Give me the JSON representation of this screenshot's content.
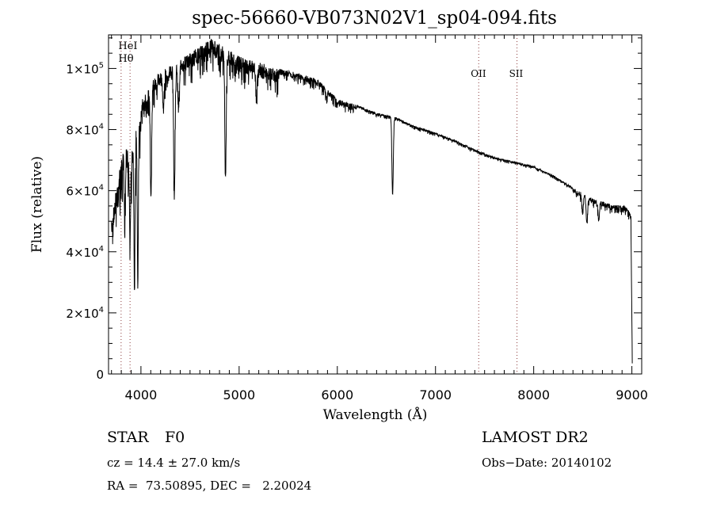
{
  "chart_data": {
    "type": "line",
    "title": "spec-56660-VB073N02V1_sp04-094.fits",
    "xlabel": "Wavelength (Å)",
    "ylabel": "Flux (relative)",
    "xlim": [
      3670,
      9100
    ],
    "ylim": [
      0,
      111000
    ],
    "xticks": [
      4000,
      5000,
      6000,
      7000,
      8000,
      9000
    ],
    "xtick_labels": [
      "4000",
      "5000",
      "6000",
      "7000",
      "8000",
      "9000"
    ],
    "yticks": [
      0,
      20000,
      40000,
      60000,
      80000,
      100000
    ],
    "ytick_labels": [
      {
        "m": "0",
        "e": ""
      },
      {
        "m": "2×10",
        "e": "4"
      },
      {
        "m": "4×10",
        "e": "4"
      },
      {
        "m": "6×10",
        "e": "4"
      },
      {
        "m": "8×10",
        "e": "4"
      },
      {
        "m": "1×10",
        "e": "5"
      }
    ],
    "continuum": {
      "wavelength": [
        3700,
        3750,
        3800,
        3850,
        3900,
        3950,
        4000,
        4100,
        4200,
        4300,
        4400,
        4500,
        4600,
        4700,
        4800,
        4900,
        5000,
        5200,
        5400,
        5600,
        5800,
        6000,
        6200,
        6400,
        6600,
        6800,
        7000,
        7200,
        7400,
        7600,
        7800,
        8000,
        8200,
        8400,
        8600,
        8800,
        8950,
        8990,
        9005
      ],
      "flux": [
        50000,
        62000,
        70000,
        76000,
        72000,
        80000,
        89000,
        95000,
        100000,
        101000,
        103000,
        105000,
        107000,
        110000,
        108000,
        106000,
        104000,
        102000,
        100000,
        98500,
        96500,
        90000,
        88000,
        85500,
        84000,
        81000,
        79000,
        76500,
        73500,
        71000,
        69500,
        68000,
        65000,
        61000,
        57500,
        55500,
        55000,
        52000,
        0
      ]
    },
    "absorption_lines": [
      {
        "wavelength": 3934,
        "min_flux": 28000
      },
      {
        "wavelength": 3968,
        "min_flux": 30000
      },
      {
        "wavelength": 3889,
        "min_flux": 45000
      },
      {
        "wavelength": 3835,
        "min_flux": 50000
      },
      {
        "wavelength": 4102,
        "min_flux": 60000
      },
      {
        "wavelength": 4340,
        "min_flux": 60000
      },
      {
        "wavelength": 4861,
        "min_flux": 66000
      },
      {
        "wavelength": 5175,
        "min_flux": 93000
      },
      {
        "wavelength": 6563,
        "min_flux": 59000
      },
      {
        "wavelength": 8498,
        "min_flux": 54000
      },
      {
        "wavelength": 8542,
        "min_flux": 50000
      },
      {
        "wavelength": 8662,
        "min_flux": 51000
      },
      {
        "wavelength": 4227,
        "min_flux": 88000
      },
      {
        "wavelength": 4383,
        "min_flux": 90000
      },
      {
        "wavelength": 5890,
        "min_flux": 91000
      }
    ],
    "line_markers": [
      {
        "label": "HeI",
        "wavelength": 3889
      },
      {
        "label": "Hθ",
        "wavelength": 3798
      },
      {
        "label": "OII",
        "wavelength": 7440
      },
      {
        "label": "SII",
        "wavelength": 7830
      }
    ],
    "marker_color": "#8b3a3a"
  },
  "info": {
    "class": "STAR",
    "subclass": "F0",
    "survey": "LAMOST DR2",
    "cz": "cz = 14.4 ± 27.0 km/s",
    "obs_date": "Obs−Date: 20140102",
    "coords": "RA =  73.50895, DEC =   2.20024"
  }
}
